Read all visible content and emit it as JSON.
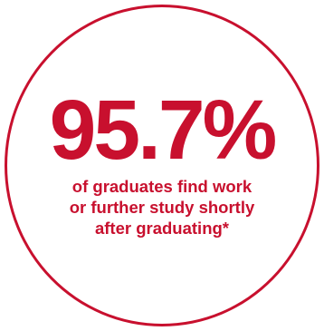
{
  "stat": {
    "value": "95.7%",
    "caption_lines": [
      "of graduates find work",
      "or further study shortly",
      "after graduating*"
    ]
  },
  "colors": {
    "accent": "#c8102e",
    "background": "#ffffff"
  }
}
